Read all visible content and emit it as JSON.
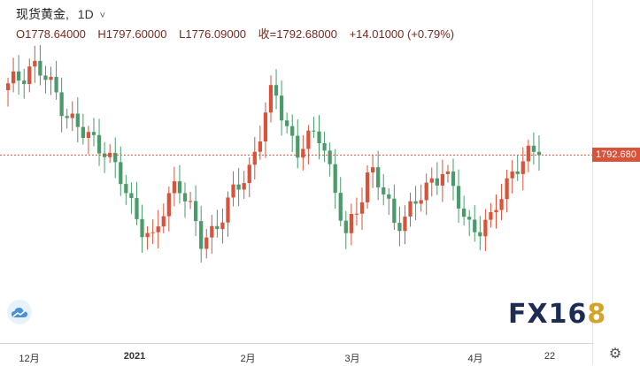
{
  "header": {
    "symbol": "现货黄金,",
    "timeframe": "1D",
    "caret": "˅",
    "open": "O1778.64000",
    "high": "H1797.60000",
    "low": "L1776.09000",
    "close": "收=1792.68000",
    "change": "+14.01000 (+0.79%)"
  },
  "last_price_label": "1792.680",
  "x_labels": [
    "12月",
    "2021",
    "2月",
    "3月",
    "4月",
    "22"
  ],
  "watermark": {
    "text_main": "FX16",
    "text_end": "8"
  },
  "colors": {
    "up": "#d9533b",
    "down": "#4a9a6b",
    "price_line": "#d9533b",
    "watermark_main": "#1c2c54",
    "watermark_accent": "#d4a32a"
  },
  "icons": {
    "settings": "gear-icon",
    "cloud": "cloud-icon"
  },
  "chart_data": {
    "type": "candlestick",
    "symbol": "现货黄金",
    "interval": "1D",
    "last_close": 1792.68,
    "approx_close_series": [
      1841,
      1860,
      1837,
      1808,
      1799,
      1760,
      1728,
      1779,
      1728,
      1752,
      1784,
      1840,
      1795,
      1810,
      1730,
      1785,
      1744,
      1758,
      1785,
      1741,
      1743,
      1787,
      1793
    ]
  }
}
